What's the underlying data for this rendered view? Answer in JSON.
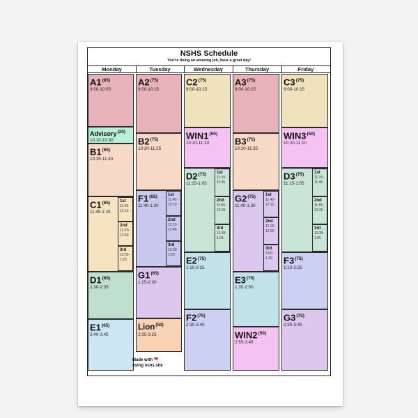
{
  "title": "NSHS Schedule",
  "subtitle": "You're doing an amazing job, have a great day!",
  "days": [
    "Monday",
    "Tuesday",
    "Wednesday",
    "Thursday",
    "Friday"
  ],
  "blocks": {
    "mon_a1": {
      "name": "A1",
      "mins": "(65)",
      "time": "9:00-10:05",
      "color": "#e7b3b8"
    },
    "mon_adv": {
      "name": "Advisory",
      "mins": "(20)",
      "time": "10:10-10:30",
      "color": "#b6f0d8"
    },
    "mon_b1": {
      "name": "B1",
      "mins": "(65)",
      "time": "10:35-11:40",
      "color": "#f7d9c7"
    },
    "mon_c1": {
      "name": "C1",
      "mins": "(65)",
      "time": "11:45-1:25",
      "color": "#f6e3bf"
    },
    "mon_d1": {
      "name": "D1",
      "mins": "(65)",
      "time": "1:30-2:35",
      "color": "#bfe0cf"
    },
    "mon_e1": {
      "name": "E1",
      "mins": "(65)",
      "time": "2:40-3:45",
      "color": "#cce6f4"
    },
    "tue_a2": {
      "name": "A2",
      "mins": "(75)",
      "time": "9:00-10:15",
      "color": "#e7b3b8"
    },
    "tue_b2": {
      "name": "B2",
      "mins": "(75)",
      "time": "10:20-11:35",
      "color": "#f7d9c7"
    },
    "tue_f1": {
      "name": "F1",
      "mins": "(65)",
      "time": "11:40-1:20",
      "color": "#c9c9ef"
    },
    "tue_g1": {
      "name": "G1",
      "mins": "(65)",
      "time": "1:25-2:30",
      "color": "#dcc8ee"
    },
    "tue_lion": {
      "name": "Lion",
      "mins": "(50)",
      "time": "2:35-3:25",
      "color": "#fad3b4"
    },
    "wed_c2": {
      "name": "C2",
      "mins": "(75)",
      "time": "9:00-10:15",
      "color": "#f1e2be"
    },
    "wed_win1": {
      "name": "WIN1",
      "mins": "(50)",
      "time": "10:20-11:10",
      "color": "#f4c3f4"
    },
    "wed_d2": {
      "name": "D2",
      "mins": "(75)",
      "time": "11:15-1:05",
      "color": "#c9e5d8"
    },
    "wed_e2": {
      "name": "E2",
      "mins": "(75)",
      "time": "1:10-2:25",
      "color": "#c2e2ea"
    },
    "wed_f2": {
      "name": "F2",
      "mins": "(75)",
      "time": "2:30-3:45",
      "color": "#ccd0f2"
    },
    "thu_a3": {
      "name": "A3",
      "mins": "(75)",
      "time": "9:00-10:15",
      "color": "#e7b3b8"
    },
    "thu_b3": {
      "name": "B3",
      "mins": "(75)",
      "time": "10:20-11:35",
      "color": "#f7d9c7"
    },
    "thu_g2": {
      "name": "G2",
      "mins": "(75)",
      "time": "11:40-1:30",
      "color": "#dcc8ee"
    },
    "thu_e3": {
      "name": "E3",
      "mins": "(75)",
      "time": "1:35-2:50",
      "color": "#c2e2ea"
    },
    "thu_win2": {
      "name": "WIN2",
      "mins": "(50)",
      "time": "2:55-3:45",
      "color": "#f4c3f4"
    },
    "fri_c3": {
      "name": "C3",
      "mins": "(75)",
      "time": "9:00-10:15",
      "color": "#f1e2be"
    },
    "fri_win3": {
      "name": "WIN3",
      "mins": "(50)",
      "time": "10:20-11:10",
      "color": "#f4c3f4"
    },
    "fri_d3": {
      "name": "D3",
      "mins": "(75)",
      "time": "11:15-1:05",
      "color": "#c9e5d8"
    },
    "fri_f3": {
      "name": "F3",
      "mins": "(75)",
      "time": "1:10-2:25",
      "color": "#ccd0f2"
    },
    "fri_g3": {
      "name": "G3",
      "mins": "(75)",
      "time": "2:30-3:45",
      "color": "#dcc8ee"
    }
  },
  "lunches": {
    "mon_c1": [
      {
        "name": "1st",
        "time": "11:45-12:15"
      },
      {
        "name": "2nd",
        "time": "12:20-12:50"
      },
      {
        "name": "3rd",
        "time": "12:55-1:25"
      }
    ],
    "tue_f1": [
      {
        "name": "1st",
        "time": "11:40-12:10"
      },
      {
        "name": "2nd",
        "time": "12:15-12:45"
      },
      {
        "name": "3rd",
        "time": "12:50-1:20"
      }
    ],
    "wed_d2": [
      {
        "name": "1st",
        "time": "11:15-11:45"
      },
      {
        "name": "2nd",
        "time": "11:55-12:25"
      },
      {
        "name": "3rd",
        "time": "12:35-1:05"
      }
    ],
    "thu_g2": [
      {
        "name": "1st",
        "time": "11:40-12:10"
      },
      {
        "name": "2nd",
        "time": "12:20-12:50"
      },
      {
        "name": "3rd",
        "time": "1:00-1:30"
      }
    ],
    "fri_d3": [
      {
        "name": "1st",
        "time": "11:15-11:45"
      },
      {
        "name": "2nd",
        "time": "11:55-12:25"
      },
      {
        "name": "3rd",
        "time": "12:35-1:05"
      }
    ]
  },
  "footer": {
    "line1": "Made with",
    "heart": "❤",
    "line2": "using nshs.site"
  }
}
